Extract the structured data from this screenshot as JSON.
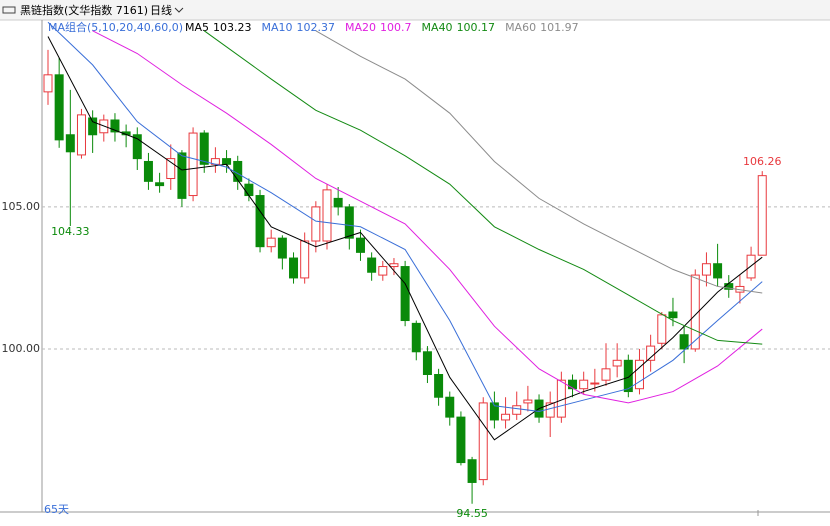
{
  "header": {
    "instrument": "黑链指数(文华指数  7161)",
    "period": "日线",
    "ma_group": "MA组合(5,10,20,40,60,0)"
  },
  "chart_data": {
    "type": "candlestick",
    "ylim": [
      94.33,
      111.58
    ],
    "yticks": [
      {
        "value": 100,
        "label": "100.00"
      },
      {
        "value": 105,
        "label": "105.00"
      }
    ],
    "grid": true,
    "up_color": "#e8383d",
    "down_color": "#0a8a0a",
    "days_label": "65天",
    "open": [
      109.05,
      109.65,
      107.54,
      106.83,
      108.13,
      107.61,
      108.06,
      107.64,
      107.54,
      106.6,
      105.85,
      106.0,
      106.9,
      105.4,
      107.6,
      106.5,
      106.7,
      106.6,
      105.8,
      105.4,
      103.6,
      103.9,
      103.2,
      102.5,
      103.8,
      103.8,
      105.3,
      105.0,
      103.9,
      103.2,
      102.6,
      102.9,
      102.9,
      100.9,
      99.9,
      99.1,
      98.3,
      97.6,
      96.1,
      95.4,
      98.1,
      97.5,
      97.7,
      98.1,
      98.2,
      97.6,
      97.6,
      98.9,
      98.6,
      98.8,
      98.9,
      99.4,
      99.6,
      98.6,
      99.6,
      100.2,
      101.3,
      100.5,
      100.0,
      102.6,
      103.0,
      102.3,
      102.0,
      102.5,
      103.3
    ],
    "high": [
      110.53,
      110.25,
      109.12,
      108.45,
      108.4,
      108.25,
      108.3,
      107.9,
      107.8,
      106.9,
      106.2,
      107.2,
      107.0,
      107.8,
      107.7,
      107.1,
      107.0,
      106.8,
      106.0,
      105.6,
      104.2,
      104.0,
      103.4,
      104.1,
      105.2,
      105.8,
      105.7,
      105.1,
      104.2,
      103.4,
      103.1,
      103.2,
      103.1,
      101.0,
      100.1,
      99.3,
      98.5,
      97.8,
      96.2,
      98.3,
      98.5,
      98.3,
      98.5,
      98.7,
      98.4,
      98.5,
      99.2,
      99.1,
      99.2,
      99.3,
      100.2,
      100.2,
      99.8,
      100.0,
      100.5,
      101.3,
      101.8,
      100.8,
      102.8,
      103.4,
      103.7,
      102.6,
      102.6,
      103.6,
      106.26
    ],
    "low": [
      108.59,
      107.08,
      104.33,
      106.7,
      106.9,
      107.3,
      107.3,
      107.1,
      106.3,
      105.6,
      105.5,
      105.6,
      105.0,
      105.2,
      106.2,
      106.2,
      106.2,
      105.6,
      105.2,
      103.4,
      103.4,
      102.8,
      102.3,
      102.3,
      103.4,
      103.5,
      104.7,
      103.5,
      103.1,
      102.4,
      102.4,
      102.6,
      100.8,
      99.6,
      98.8,
      98.0,
      97.3,
      95.9,
      94.55,
      95.2,
      97.2,
      97.2,
      97.5,
      97.8,
      97.4,
      96.9,
      97.4,
      98.3,
      98.4,
      98.5,
      98.7,
      99.0,
      98.3,
      98.4,
      99.2,
      100.0,
      100.8,
      99.5,
      99.9,
      102.2,
      102.2,
      101.8,
      101.6,
      102.4,
      103.3
    ],
    "close": [
      109.65,
      107.36,
      106.94,
      108.24,
      107.54,
      108.06,
      107.64,
      107.54,
      106.7,
      105.9,
      105.75,
      106.7,
      105.3,
      107.6,
      106.5,
      106.7,
      106.5,
      105.9,
      105.4,
      103.6,
      103.9,
      103.2,
      102.5,
      103.8,
      105.0,
      105.6,
      105.0,
      103.9,
      103.4,
      102.7,
      102.9,
      103.0,
      101.0,
      99.9,
      99.1,
      98.3,
      97.6,
      96.0,
      95.3,
      98.1,
      97.5,
      97.7,
      98.0,
      98.2,
      97.6,
      98.1,
      98.9,
      98.6,
      98.9,
      98.8,
      99.3,
      99.6,
      98.5,
      99.6,
      100.1,
      101.2,
      101.1,
      100.0,
      102.6,
      103.0,
      102.5,
      102.1,
      102.2,
      103.3,
      106.1
    ],
    "ma_series": [
      {
        "name": "MA5",
        "color": "#000000",
        "x": [
          0,
          4,
          8,
          12,
          16,
          20,
          24,
          28,
          32,
          36,
          40,
          44,
          48,
          52,
          56,
          60,
          64
        ],
        "values": [
          111.0,
          108.0,
          107.4,
          106.3,
          106.5,
          104.3,
          103.6,
          104.1,
          102.3,
          99.0,
          96.8,
          97.9,
          98.5,
          99.0,
          100.4,
          102.0,
          103.23
        ]
      },
      {
        "name": "MA10",
        "color": "#3a6fd8",
        "x": [
          0,
          4,
          8,
          12,
          16,
          20,
          24,
          28,
          32,
          36,
          40,
          44,
          48,
          52,
          56,
          60,
          64
        ],
        "values": [
          111.5,
          110.0,
          108.0,
          106.8,
          106.4,
          105.5,
          104.5,
          104.3,
          103.5,
          101.0,
          98.0,
          97.8,
          98.2,
          98.6,
          99.6,
          101.0,
          102.37
        ]
      },
      {
        "name": "MA20",
        "color": "#e020e0",
        "x": [
          4,
          8,
          12,
          16,
          20,
          24,
          28,
          32,
          36,
          40,
          44,
          48,
          52,
          56,
          60,
          64
        ],
        "values": [
          111.2,
          110.4,
          109.3,
          108.3,
          107.2,
          106.0,
          105.2,
          104.4,
          102.8,
          100.8,
          99.3,
          98.4,
          98.1,
          98.5,
          99.4,
          100.7
        ]
      },
      {
        "name": "MA40",
        "color": "#138a13",
        "x": [
          14,
          20,
          24,
          28,
          32,
          36,
          40,
          44,
          48,
          52,
          56,
          60,
          64
        ],
        "values": [
          111.2,
          109.5,
          108.4,
          107.7,
          106.8,
          105.8,
          104.3,
          103.5,
          102.8,
          101.9,
          101.0,
          100.3,
          100.17
        ]
      },
      {
        "name": "MA60",
        "color": "#8c8c8c",
        "x": [
          24,
          28,
          32,
          36,
          40,
          44,
          48,
          52,
          56,
          60,
          64
        ],
        "values": [
          111.2,
          110.3,
          109.5,
          108.3,
          106.6,
          105.3,
          104.4,
          103.6,
          102.8,
          102.2,
          101.97
        ]
      }
    ]
  }
}
